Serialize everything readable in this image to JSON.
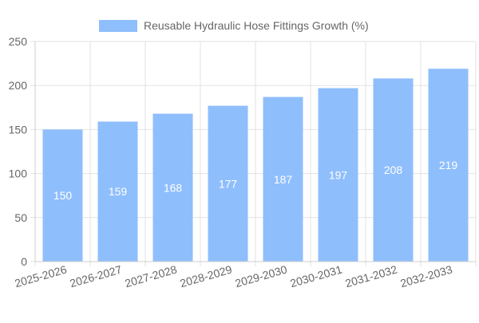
{
  "chart_data": {
    "type": "bar",
    "categories": [
      "2025-2026",
      "2026-2027",
      "2027-2028",
      "2028-2029",
      "2029-2030",
      "2030-2031",
      "2031-2032",
      "2032-2033"
    ],
    "series": [
      {
        "name": "Reusable Hydraulic Hose Fittings Growth (%)",
        "values": [
          150,
          159,
          168,
          177,
          187,
          197,
          208,
          219
        ]
      }
    ],
    "data_labels": [
      "150",
      "159",
      "168",
      "177",
      "187",
      "197",
      "208",
      "219"
    ],
    "y_ticks": [
      "0",
      "50",
      "100",
      "150",
      "200",
      "250"
    ],
    "ylim": [
      0,
      250
    ],
    "grid": true,
    "legend_position": "top-center",
    "colors": {
      "bar": "#8fbefc",
      "grid": "#e2e2e2",
      "axis_text": "#666666",
      "data_label": "#ffffff"
    }
  }
}
